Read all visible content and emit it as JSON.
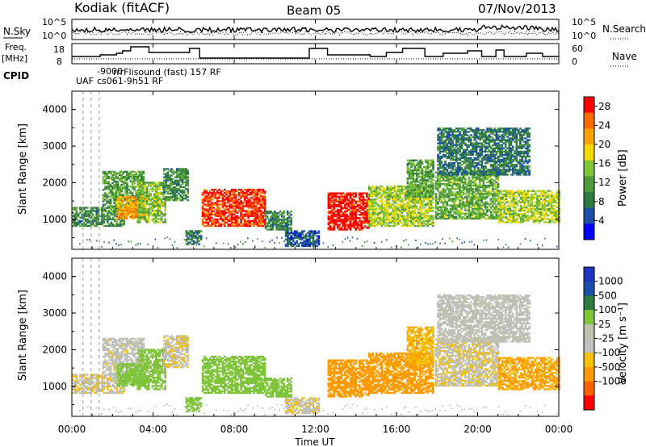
{
  "header": {
    "station": "Kodiak (fitACF)",
    "beam": "Beam 05",
    "date": "07/Nov/2013"
  },
  "noise_panel": {
    "left_label": "N.Sky",
    "right_label": "N.Search",
    "left_ticks": [
      "10^5",
      "10^0"
    ],
    "right_ticks": [
      "10^5",
      "10^0"
    ]
  },
  "freq_panel": {
    "left_label_line1": "Freq.",
    "left_label_line2": "[MHz]",
    "right_label": "Nave",
    "left_ticks": [
      "18",
      "8"
    ],
    "right_ticks": [
      "60",
      "0"
    ]
  },
  "cpid": {
    "label": "CPID",
    "entries": [
      "UAF",
      "-9000",
      "rrrFlisound (fast) 157 RF",
      "cs061-9h51 RF"
    ]
  },
  "colors": {
    "power": [
      "#0000ff",
      "#1c4fa8",
      "#2f7a45",
      "#4f9a3a",
      "#7fc43a",
      "#f2d900",
      "#f7a400",
      "#ff6a00",
      "#ff0000"
    ],
    "velocity": [
      "#ff0000",
      "#ff6000",
      "#ff9a00",
      "#f5c000",
      "#c0c0c0",
      "#c0c0b0",
      "#7fc43a",
      "#2f7a45",
      "#1c4fa8",
      "#2030c0"
    ]
  },
  "chart_data": [
    {
      "type": "heatmap",
      "title": "Power",
      "ylabel": "Slant Range [km]",
      "ylim": [
        180,
        4500
      ],
      "yticks": [
        "1000",
        "2000",
        "3000",
        "4000"
      ],
      "colorbar_label": "Power [dB]",
      "colorbar_ticks": [
        "4",
        "8",
        "12",
        "16",
        "20",
        "24",
        "28"
      ],
      "zlim": [
        0,
        30
      ]
    },
    {
      "type": "heatmap",
      "title": "Velocity",
      "ylabel": "Slant Range [km]",
      "ylim": [
        180,
        4500
      ],
      "yticks": [
        "1000",
        "2000",
        "3000",
        "4000"
      ],
      "colorbar_label": "Velocity [m s⁻¹]",
      "colorbar_ticks": [
        "1000",
        "500",
        "100",
        "25",
        "-25",
        "-100",
        "-500",
        "-1000"
      ]
    }
  ],
  "x_axis": {
    "ticks": [
      "00:00",
      "04:00",
      "08:00",
      "12:00",
      "16:00",
      "20:00",
      "00:00"
    ],
    "label": "Time UT",
    "range_hours": [
      0,
      24
    ]
  },
  "echo_regions": [
    {
      "t0": 0.0,
      "t1": 2.6,
      "r0": 800,
      "r1": 1300,
      "p": 10,
      "v": 0
    },
    {
      "t0": 1.5,
      "t1": 3.5,
      "r0": 1200,
      "r1": 2300,
      "p": 12,
      "v": 30
    },
    {
      "t0": 2.2,
      "t1": 3.6,
      "r0": 1000,
      "r1": 1600,
      "p": 22,
      "v": 200
    },
    {
      "t0": 3.2,
      "t1": 4.6,
      "r0": 900,
      "r1": 2000,
      "p": 14,
      "v": 150
    },
    {
      "t0": 4.5,
      "t1": 5.7,
      "r0": 1500,
      "r1": 2400,
      "p": 10,
      "v": 0
    },
    {
      "t0": 5.6,
      "t1": 6.4,
      "r0": 300,
      "r1": 700,
      "p": 8,
      "v": 300
    },
    {
      "t0": 6.4,
      "t1": 9.5,
      "r0": 800,
      "r1": 1800,
      "p": 27,
      "v": 300
    },
    {
      "t0": 9.5,
      "t1": 10.8,
      "r0": 700,
      "r1": 1200,
      "p": 9,
      "v": 200
    },
    {
      "t0": 10.5,
      "t1": 12.2,
      "r0": 250,
      "r1": 700,
      "p": 6,
      "v": 0
    },
    {
      "t0": 12.6,
      "t1": 14.6,
      "r0": 700,
      "r1": 1700,
      "p": 29,
      "v": -200
    },
    {
      "t0": 14.6,
      "t1": 17.8,
      "r0": 800,
      "r1": 1900,
      "p": 16,
      "v": -150
    },
    {
      "t0": 16.5,
      "t1": 17.8,
      "r0": 1600,
      "r1": 2600,
      "p": 12,
      "v": -80
    },
    {
      "t0": 17.9,
      "t1": 21.0,
      "r0": 1000,
      "r1": 2300,
      "p": 13,
      "v": 0
    },
    {
      "t0": 18.0,
      "t1": 22.5,
      "r0": 2200,
      "r1": 3500,
      "p": 8,
      "v": 40
    },
    {
      "t0": 21.0,
      "t1": 24.0,
      "r0": 900,
      "r1": 1800,
      "p": 16,
      "v": -120
    }
  ]
}
